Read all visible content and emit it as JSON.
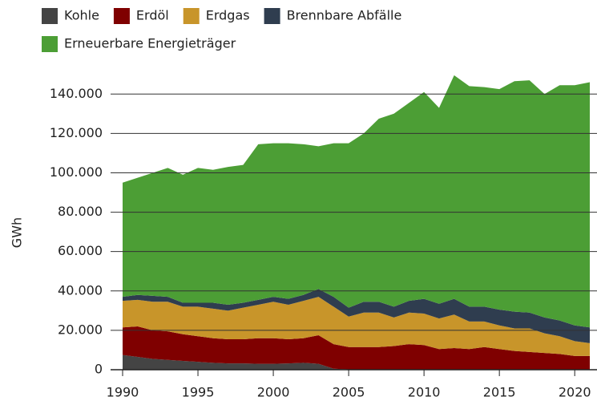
{
  "chart_data": {
    "type": "stacked-area",
    "y_label": "GWh",
    "x": [
      1990,
      1991,
      1992,
      1993,
      1994,
      1995,
      1996,
      1997,
      1998,
      1999,
      2000,
      2001,
      2002,
      2003,
      2004,
      2005,
      2006,
      2007,
      2008,
      2009,
      2010,
      2011,
      2012,
      2013,
      2014,
      2015,
      2016,
      2017,
      2018,
      2019,
      2020,
      2021
    ],
    "xlim": [
      1990,
      2021
    ],
    "xticks": [
      1990,
      1995,
      2000,
      2005,
      2010,
      2015,
      2020
    ],
    "ylim": [
      0,
      150000
    ],
    "yticks": [
      0,
      {
        "value": 20000,
        "label": "20.000"
      },
      {
        "value": 40000,
        "label": "40.000"
      },
      {
        "value": 60000,
        "label": "60.000"
      },
      {
        "value": 80000,
        "label": "80.000"
      },
      {
        "value": 100000,
        "label": "100.000"
      },
      {
        "value": 120000,
        "label": "120.000"
      },
      {
        "value": 140000,
        "label": "140.000"
      }
    ],
    "grid": true,
    "series": [
      {
        "name": "Kohle",
        "color": "#444444",
        "values": [
          7500,
          6500,
          5500,
          5000,
          4500,
          4000,
          3500,
          3200,
          3200,
          3000,
          3000,
          3200,
          3500,
          3000,
          500,
          200,
          0,
          0,
          0,
          0,
          0,
          0,
          0,
          0,
          0,
          0,
          0,
          0,
          0,
          0,
          0,
          0
        ]
      },
      {
        "name": "Erdöl",
        "color": "#7f0000",
        "values": [
          14000,
          15500,
          14500,
          14500,
          13500,
          13000,
          12500,
          12300,
          12300,
          13000,
          13000,
          12300,
          12500,
          14500,
          12500,
          11300,
          11500,
          11500,
          12000,
          13000,
          12500,
          10500,
          11000,
          10500,
          11500,
          10500,
          9500,
          9000,
          8500,
          8000,
          7000,
          7000
        ]
      },
      {
        "name": "Erdgas",
        "color": "#c8952a",
        "values": [
          13500,
          13500,
          14500,
          15000,
          14000,
          15000,
          15000,
          14500,
          16000,
          17000,
          18500,
          17500,
          19000,
          19500,
          19000,
          15500,
          17500,
          17500,
          14500,
          16000,
          16000,
          15500,
          17000,
          14000,
          13000,
          12000,
          11500,
          12000,
          10000,
          9000,
          7500,
          6500
        ]
      },
      {
        "name": "Brennbare Abfälle",
        "color": "#2f3d4f",
        "values": [
          2000,
          2500,
          3000,
          2500,
          2000,
          2000,
          3000,
          3000,
          2500,
          2500,
          2500,
          3000,
          3000,
          4000,
          5000,
          4500,
          5500,
          5500,
          5500,
          6000,
          7500,
          7500,
          8000,
          7500,
          7500,
          8000,
          8500,
          8000,
          8000,
          8000,
          8000,
          8000
        ]
      },
      {
        "name": "Erneuerbare Energieträger",
        "color": "#4c9e35",
        "values": [
          58000,
          59500,
          62500,
          65500,
          65000,
          68500,
          67500,
          70000,
          70000,
          79000,
          78000,
          79000,
          76500,
          72500,
          78000,
          83500,
          85500,
          93000,
          98000,
          100500,
          105000,
          99500,
          113500,
          112000,
          111500,
          112000,
          117000,
          118000,
          113500,
          119500,
          122000,
          124500
        ]
      }
    ]
  }
}
